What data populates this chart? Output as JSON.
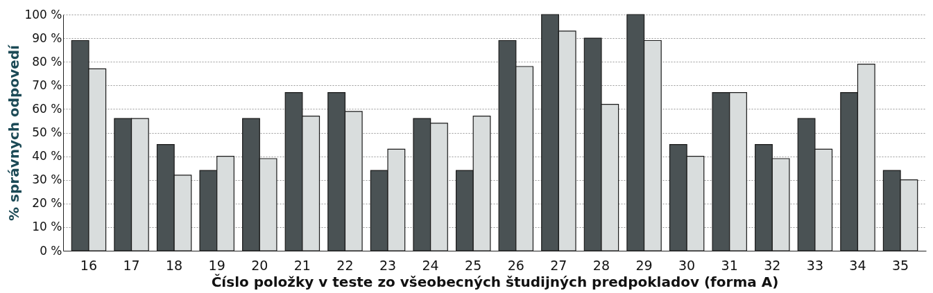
{
  "chart_data": {
    "type": "bar",
    "xlabel": "Číslo položky v teste zo všeobecných študijných predpokladov (forma A)",
    "ylabel": "% správnych odpovedí",
    "categories": [
      "16",
      "17",
      "18",
      "19",
      "20",
      "21",
      "22",
      "23",
      "24",
      "25",
      "26",
      "27",
      "28",
      "29",
      "30",
      "31",
      "32",
      "33",
      "34",
      "35"
    ],
    "series": [
      {
        "color": "#4a5254",
        "values": [
          89,
          56,
          45,
          34,
          56,
          67,
          67,
          34,
          56,
          34,
          89,
          100,
          90,
          100,
          45,
          67,
          45,
          56,
          67,
          34
        ]
      },
      {
        "color": "#d9dddd",
        "values": [
          77,
          56,
          32,
          40,
          39,
          57,
          59,
          43,
          54,
          57,
          78,
          93,
          62,
          89,
          40,
          67,
          39,
          43,
          79,
          30
        ]
      }
    ],
    "ylim": [
      0,
      100
    ],
    "yticks": [
      {
        "value": 0,
        "label": "0 %"
      },
      {
        "value": 10,
        "label": "10 %"
      },
      {
        "value": 20,
        "label": "20 %"
      },
      {
        "value": 30,
        "label": "30 %"
      },
      {
        "value": 40,
        "label": "40 %"
      },
      {
        "value": 50,
        "label": "50 %"
      },
      {
        "value": 60,
        "label": "60 %"
      },
      {
        "value": 70,
        "label": "70 %"
      },
      {
        "value": 80,
        "label": "80 %"
      },
      {
        "value": 90,
        "label": "90 %"
      },
      {
        "value": 100,
        "label": "100 %"
      }
    ],
    "grid": "y",
    "legend": false
  }
}
